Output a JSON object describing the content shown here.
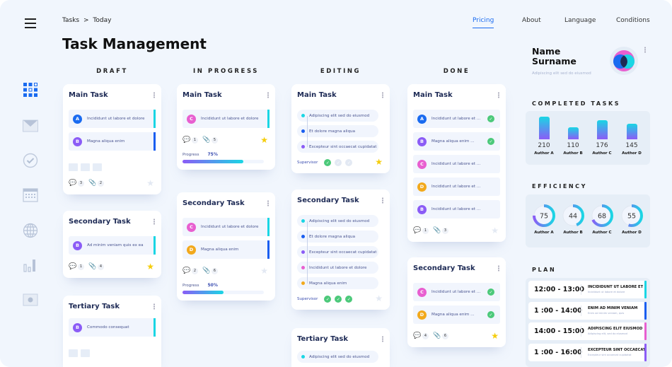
{
  "breadcrumb": {
    "root": "Tasks",
    "sep": ">",
    "current": "Today"
  },
  "title": "Task Management",
  "nav": [
    {
      "label": "Pricing",
      "active": true
    },
    {
      "label": "About"
    },
    {
      "label": "Language"
    },
    {
      "label": "Conditions"
    }
  ],
  "sidebar": [
    {
      "icon": "dashboard-icon",
      "active": true
    },
    {
      "icon": "mail-icon"
    },
    {
      "icon": "check-circle-icon"
    },
    {
      "icon": "calendar-icon"
    },
    {
      "icon": "globe-icon"
    },
    {
      "icon": "bar-chart-icon"
    },
    {
      "icon": "record-icon"
    }
  ],
  "colors": {
    "A": "#1a6bf0",
    "B": "#8b5cf6",
    "C": "#e85fd0",
    "D": "#f2a91c",
    "cyan": "#1ad6e4",
    "blue": "#1a5ef0",
    "purple": "#8b5cf6",
    "pink": "#e85fd0",
    "orange": "#f2a91c",
    "star_on": "#f5cd0b",
    "star_off": "#e3e9f3",
    "check": "#4cc97a"
  },
  "columns": [
    {
      "label": "DRAFT",
      "cards": [
        {
          "title": "Main Task",
          "rows": [
            {
              "av": "A",
              "text": "Incididunt ut labore et dolore",
              "bar": "cyan"
            },
            {
              "av": "B",
              "text": "Magna aliqua enim",
              "bar": "blue"
            }
          ],
          "images": 3,
          "comments": "3",
          "attachments": "2",
          "starred": false
        },
        {
          "title": "Secondary Task",
          "rows": [
            {
              "av": "B",
              "text": "Ad minim veniam  quis ex ea",
              "bar": "cyan"
            }
          ],
          "comments": "1",
          "attachments": "4",
          "starred": true
        },
        {
          "title": "Tertiary Task",
          "rows": [
            {
              "av": "B",
              "text": "Commodo consequat",
              "bar": "cyan"
            }
          ],
          "images": 2
        }
      ]
    },
    {
      "label": "IN PROGRESS",
      "cards": [
        {
          "title": "Main Task",
          "rows": [
            {
              "av": "C",
              "text": "Incididunt ut labore et dolore",
              "bar": "cyan"
            }
          ],
          "comments": "1",
          "attachments": "5",
          "starred": true,
          "progress_label": "Progress",
          "progress": "75%"
        },
        {
          "title": "Secondary Task",
          "rows": [
            {
              "av": "C",
              "text": "Incididunt ut labore et dolore",
              "bar": "cyan"
            },
            {
              "av": "D",
              "text": "Magna aliqua enim",
              "bar": "blue"
            }
          ],
          "comments": "2",
          "attachments": "6",
          "starred": false,
          "progress_label": "Progress",
          "progress": "50%"
        }
      ]
    },
    {
      "label": "EDITING",
      "cards": [
        {
          "title": "Main Task",
          "timeline": [
            {
              "dot": "cyan",
              "text": "Adipiscing elit sed do eiusmod"
            },
            {
              "dot": "blue",
              "text": "Et dolore magna aliqua"
            },
            {
              "dot": "purple",
              "text": "Excepteur sint occaecat cupidatat"
            }
          ],
          "supervisor": "Supervisor",
          "checks": [
            true,
            false,
            false
          ],
          "starred": true
        },
        {
          "title": "Secondary Task",
          "timeline": [
            {
              "dot": "cyan",
              "text": "Adipiscing elit sed do eiusmod"
            },
            {
              "dot": "blue",
              "text": "Et dolore magna aliqua"
            },
            {
              "dot": "purple",
              "text": "Excepteur sint occaecat cupidatat"
            },
            {
              "dot": "pink",
              "text": "Incididunt ut labore et dolore"
            },
            {
              "dot": "orange",
              "text": "Magna aliqua enim"
            }
          ],
          "supervisor": "Supervisor",
          "checks": [
            true,
            true,
            true
          ],
          "starred": false
        },
        {
          "title": "Tertiary Task",
          "timeline": [
            {
              "dot": "cyan",
              "text": "Adipiscing elit sed do eiusmod"
            }
          ]
        }
      ]
    },
    {
      "label": "DONE",
      "cards": [
        {
          "title": "Main Task",
          "rows": [
            {
              "av": "A",
              "text": "Incididunt ut labore et ...",
              "done": true
            },
            {
              "av": "B",
              "text": "Magna aliqua enim ...",
              "done": true
            },
            {
              "av": "C",
              "text": "Incididunt ut labore et ..."
            },
            {
              "av": "D",
              "text": "Incididunt ut labore et ..."
            },
            {
              "av": "B",
              "text": "Incididunt ut labore et ..."
            }
          ],
          "comments": "1",
          "attachments": "3",
          "starred": false
        },
        {
          "title": "Secondary Task",
          "rows": [
            {
              "av": "C",
              "text": "Incididunt ut labore et ...",
              "done": true
            },
            {
              "av": "D",
              "text": "Magna aliqua enim ...",
              "done": true
            }
          ],
          "comments": "4",
          "attachments": "6",
          "starred": true
        }
      ]
    }
  ],
  "profile": {
    "name_line1": "Name",
    "name_line2": "Surname",
    "subtitle": "Adipiscing elit sed do eiusmod"
  },
  "completed": {
    "heading": "COMPLETED TASKS",
    "items": [
      {
        "author": "Author A",
        "value": 210
      },
      {
        "author": "Author B",
        "value": 110
      },
      {
        "author": "Author C",
        "value": 176
      },
      {
        "author": "Author D",
        "value": 145
      }
    ]
  },
  "efficiency": {
    "heading": "EFFICIENCY",
    "items": [
      {
        "author": "Author A",
        "value": 75
      },
      {
        "author": "Author B",
        "value": 44
      },
      {
        "author": "Author C",
        "value": 68
      },
      {
        "author": "Author D",
        "value": 55
      }
    ]
  },
  "plan": {
    "heading": "PLAN",
    "items": [
      {
        "time": "12:00 - 13:00",
        "title": "INCIDIDUNT UT LABORE ET",
        "sub": "Incididunt ut labore et dolore",
        "color": "cyan"
      },
      {
        "time": "1 :00 - 14:00",
        "title": "ENIM AD MINIM VENIAM",
        "sub": "Enim ad minim veniam, quis",
        "color": "blue"
      },
      {
        "time": "14:00 - 15:00",
        "title": "ADIPISCING ELIT EIUSMOD",
        "sub": "Adipiscing elit, sed do eiusmod",
        "color": "pink"
      },
      {
        "time": "1 :00 - 16:00",
        "title": "EXCEPTEUR SINT OCCAECAT",
        "sub": "Excepteur sint occaecat cupidatat",
        "color": "purple"
      }
    ]
  }
}
